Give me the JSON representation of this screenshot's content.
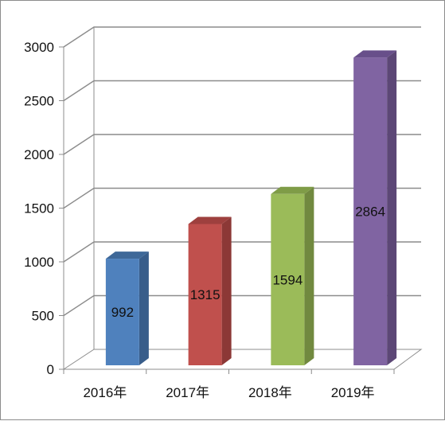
{
  "chart_data": {
    "type": "bar",
    "style": "3d-column",
    "categories": [
      "2016年",
      "2017年",
      "2018年",
      "2019年"
    ],
    "values": [
      992,
      1315,
      1594,
      2864
    ],
    "data_labels": [
      "992",
      "1315",
      "1594",
      "2864"
    ],
    "y_ticks": [
      "0",
      "500",
      "1000",
      "1500",
      "2000",
      "2500",
      "3000"
    ],
    "ylim": [
      0,
      3000
    ],
    "grid": true,
    "legend": "none",
    "colors": [
      "#4f81bd",
      "#c0504d",
      "#9bbb59",
      "#8064a2"
    ],
    "side_colors": [
      "#385d8a",
      "#8c3836",
      "#71893f",
      "#5c4776"
    ],
    "top_colors": [
      "#3e6898",
      "#9e403e",
      "#7f9c47",
      "#684f8a"
    ]
  }
}
